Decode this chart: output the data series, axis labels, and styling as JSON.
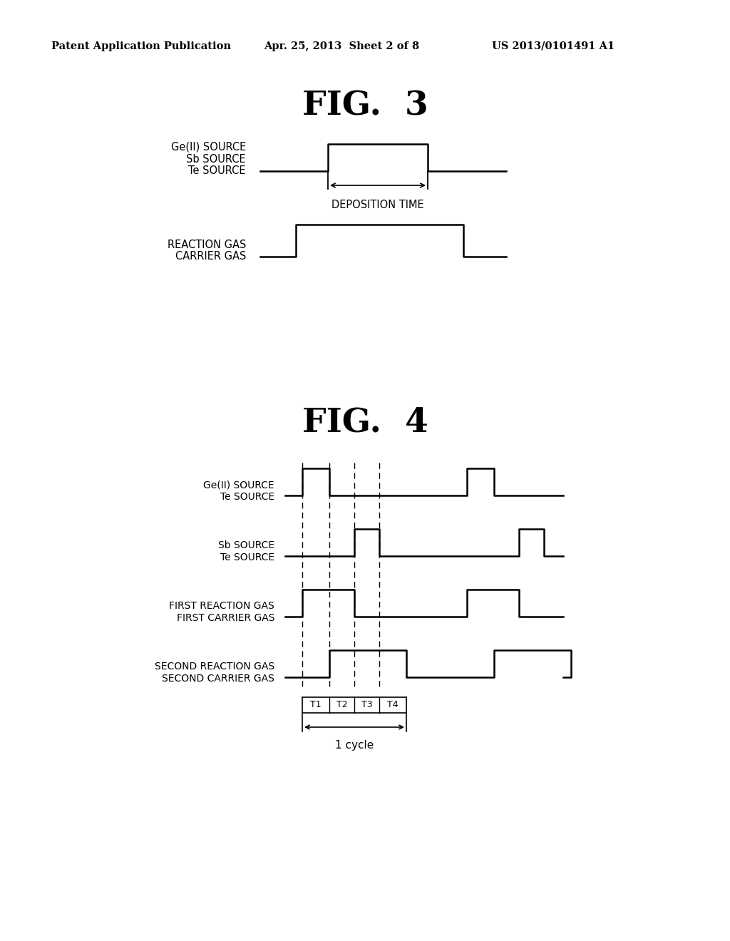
{
  "bg_color": "#ffffff",
  "text_color": "#000000",
  "header_left": "Patent Application Publication",
  "header_mid": "Apr. 25, 2013  Sheet 2 of 8",
  "header_right": "US 2013/0101491 A1",
  "fig3_title": "FIG.  3",
  "fig4_title": "FIG.  4",
  "line_color": "#000000",
  "fig3": {
    "label_row1_a": "Ge(II) SOURCE",
    "label_row1_b": "Sb SOURCE",
    "label_row1_c": "Te SOURCE",
    "label_row2_a": "REACTION GAS",
    "label_row2_b": "CARRIER GAS",
    "deposition_label": "DEPOSITION TIME"
  },
  "fig4": {
    "label_row1_a": "Ge(II) SOURCE",
    "label_row1_b": "Te SOURCE",
    "label_row2_a": "Sb SOURCE",
    "label_row2_b": "Te SOURCE",
    "label_row3_a": "FIRST REACTION GAS",
    "label_row3_b": "FIRST CARRIER GAS",
    "label_row4_a": "SECOND REACTION GAS",
    "label_row4_b": "SECOND CARRIER GAS",
    "t_labels": [
      "T1",
      "T2",
      "T3",
      "T4"
    ],
    "cycle_label": "1 cycle"
  }
}
